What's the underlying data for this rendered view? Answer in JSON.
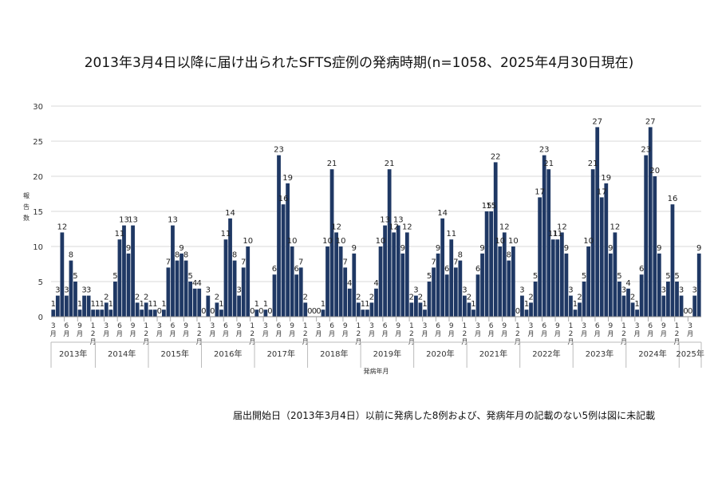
{
  "chart_data": {
    "type": "bar",
    "title": "2013年3月4日以降に届け出られたSFTS症例の発病時期(n=1058、2025年4月30日現在)",
    "ylabel": "報告数",
    "xlabel": "発病年月",
    "ylim": [
      0,
      30
    ],
    "yticks": [
      0,
      5,
      10,
      15,
      20,
      25,
      30
    ],
    "grid": true,
    "bar_color": "#1f3864",
    "month_tick_labels": [
      "3月",
      "6月",
      "9月",
      "12月"
    ],
    "years": [
      "2013年",
      "2014年",
      "2015年",
      "2016年",
      "2017年",
      "2018年",
      "2019年",
      "2020年",
      "2021年",
      "2022年",
      "2023年",
      "2024年",
      "2025年"
    ],
    "note": "届出開始日（2013年3月4日）以前に発病した8例および、発病年月の記載のない5例は図に未記載",
    "series": [
      {
        "name": "報告数",
        "values": [
          1,
          3,
          12,
          3,
          8,
          5,
          1,
          3,
          3,
          1,
          1,
          1,
          2,
          1,
          5,
          11,
          13,
          9,
          13,
          2,
          1,
          2,
          1,
          1,
          0,
          1,
          7,
          13,
          8,
          9,
          8,
          5,
          4,
          4,
          0,
          3,
          0,
          2,
          1,
          11,
          14,
          8,
          3,
          7,
          10,
          0,
          1,
          0,
          1,
          0,
          6,
          23,
          16,
          19,
          10,
          6,
          7,
          2,
          0,
          0,
          0,
          1,
          10,
          21,
          12,
          10,
          7,
          4,
          9,
          2,
          1,
          1,
          2,
          4,
          10,
          13,
          21,
          12,
          13,
          9,
          12,
          2,
          3,
          2,
          1,
          5,
          7,
          9,
          14,
          6,
          11,
          7,
          8,
          3,
          2,
          1,
          6,
          9,
          15,
          15,
          22,
          10,
          12,
          8,
          10,
          0,
          3,
          1,
          2,
          5,
          17,
          23,
          21,
          11,
          11,
          12,
          9,
          3,
          1,
          2,
          5,
          10,
          21,
          27,
          17,
          19,
          9,
          12,
          5,
          3,
          4,
          2,
          1,
          6,
          23,
          27,
          20,
          9,
          3,
          5,
          16,
          5,
          3,
          0,
          0,
          3,
          9
        ]
      }
    ]
  }
}
